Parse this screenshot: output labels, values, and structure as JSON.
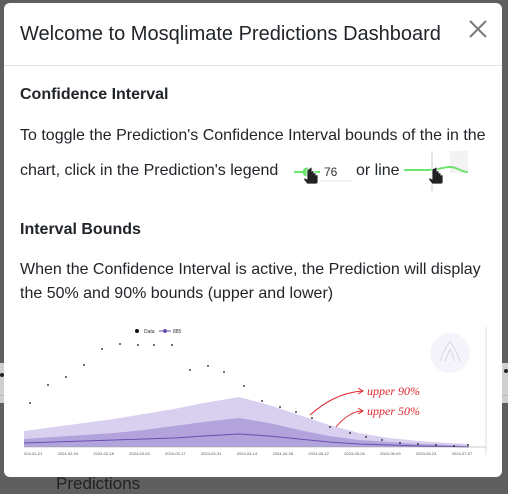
{
  "modal": {
    "title": "Welcome to Mosqlimate Predictions Dashboard",
    "close_label": "×"
  },
  "confidence": {
    "heading": "Confidence Interval",
    "text_line1": "To toggle the Prediction's Confidence Interval bounds of the in the",
    "text_line2": "chart, click in the Prediction's legend",
    "legend_number": "76",
    "or_line": "or line"
  },
  "bounds": {
    "heading": "Interval Bounds",
    "text_line1": "When the Confidence Interval is active, the Prediction will display",
    "text_line2": "the 50% and 90% bounds (upper and lower)"
  },
  "chart_example": {
    "legend_data": "Data",
    "legend_series": "885",
    "annotation_upper90": "upper 90%",
    "annotation_upper50": "upper 50%",
    "x_ticks": [
      "2024-01-21",
      "2024-02-04",
      "2024-02-18",
      "2024-03-03",
      "2024-03-17",
      "2024-03-31",
      "2024-04-14",
      "2024-04-28",
      "2024-05-12",
      "2024-05-26",
      "2024-06-09",
      "2024-06-23",
      "2024-07-07"
    ],
    "colors": {
      "band90": "#d9cfee",
      "band50": "#b3a3dc",
      "median": "#6a4fb0",
      "annotation": "#e0262f",
      "legend_green": "#6ee36e"
    }
  },
  "background": {
    "partial_text": "Predictions"
  }
}
